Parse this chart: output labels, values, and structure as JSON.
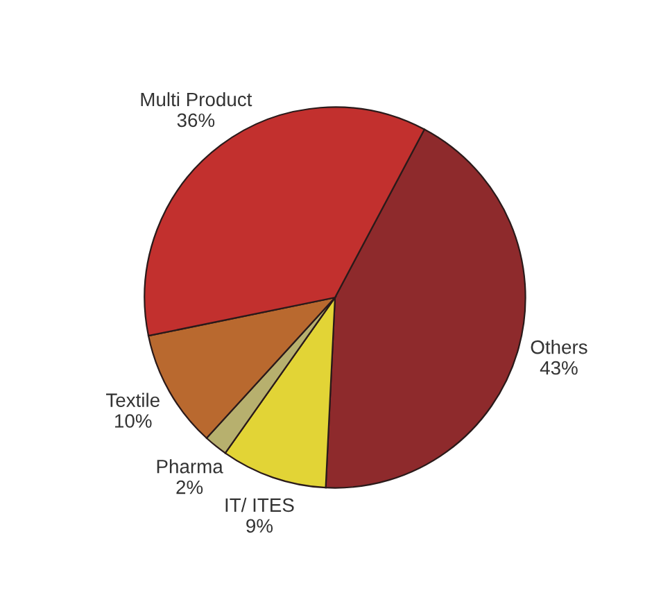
{
  "chart_data": {
    "type": "pie",
    "categories": [
      "Others",
      "IT/ ITES",
      "Pharma",
      "Textile",
      "Multi Product"
    ],
    "values": [
      43,
      9,
      2,
      10,
      36
    ],
    "value_labels": [
      "43%",
      "9%",
      "2%",
      "10%",
      "36%"
    ],
    "colors": [
      "#8e2a2c",
      "#e2d436",
      "#b7b06e",
      "#b9692f",
      "#c2302e"
    ],
    "legend": false
  }
}
